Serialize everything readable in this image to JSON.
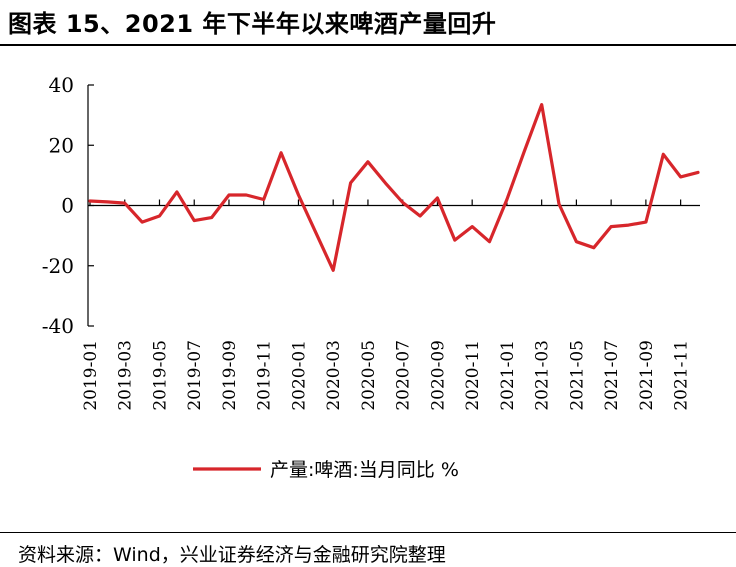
{
  "title": "图表 15、2021 年下半年以来啤酒产量回升",
  "source": "资料来源：Wind，兴业证券经济与金融研究院整理",
  "colors": {
    "series": "#d7262b",
    "axis": "#000000"
  },
  "chart_data": {
    "type": "line",
    "title": "",
    "xlabel": "",
    "ylabel": "",
    "ylim": [
      -40,
      40
    ],
    "yticks": [
      -40,
      -20,
      0,
      20,
      40
    ],
    "grid": false,
    "legend_position": "bottom",
    "x": [
      "2019-01",
      "2019-02",
      "2019-03",
      "2019-04",
      "2019-05",
      "2019-06",
      "2019-07",
      "2019-08",
      "2019-09",
      "2019-10",
      "2019-11",
      "2019-12",
      "2020-01",
      "2020-02",
      "2020-03",
      "2020-04",
      "2020-05",
      "2020-06",
      "2020-07",
      "2020-08",
      "2020-09",
      "2020-10",
      "2020-11",
      "2020-12",
      "2021-01",
      "2021-02",
      "2021-03",
      "2021-04",
      "2021-05",
      "2021-06",
      "2021-07",
      "2021-08",
      "2021-09",
      "2021-10",
      "2021-11",
      "2021-12"
    ],
    "xtick_labels": [
      "2019-01",
      "2019-03",
      "2019-05",
      "2019-07",
      "2019-09",
      "2019-11",
      "2020-01",
      "2020-03",
      "2020-05",
      "2020-07",
      "2020-09",
      "2020-11",
      "2021-01",
      "2021-03",
      "2021-05",
      "2021-07",
      "2021-09",
      "2021-11"
    ],
    "series": [
      {
        "name": "产量:啤酒:当月同比 %",
        "values": [
          1.5,
          1.2,
          0.8,
          -5.5,
          -3.5,
          4.5,
          -5.0,
          -4.0,
          3.5,
          3.5,
          2.0,
          17.5,
          3.5,
          -9.0,
          -21.5,
          7.5,
          14.5,
          7.5,
          1.0,
          -3.5,
          2.5,
          -11.5,
          -7.0,
          -12.0,
          2.0,
          18.0,
          33.5,
          0.5,
          -12.0,
          -14.0,
          -7.0,
          -6.5,
          -5.5,
          17.0,
          9.5,
          11.0
        ]
      }
    ]
  }
}
